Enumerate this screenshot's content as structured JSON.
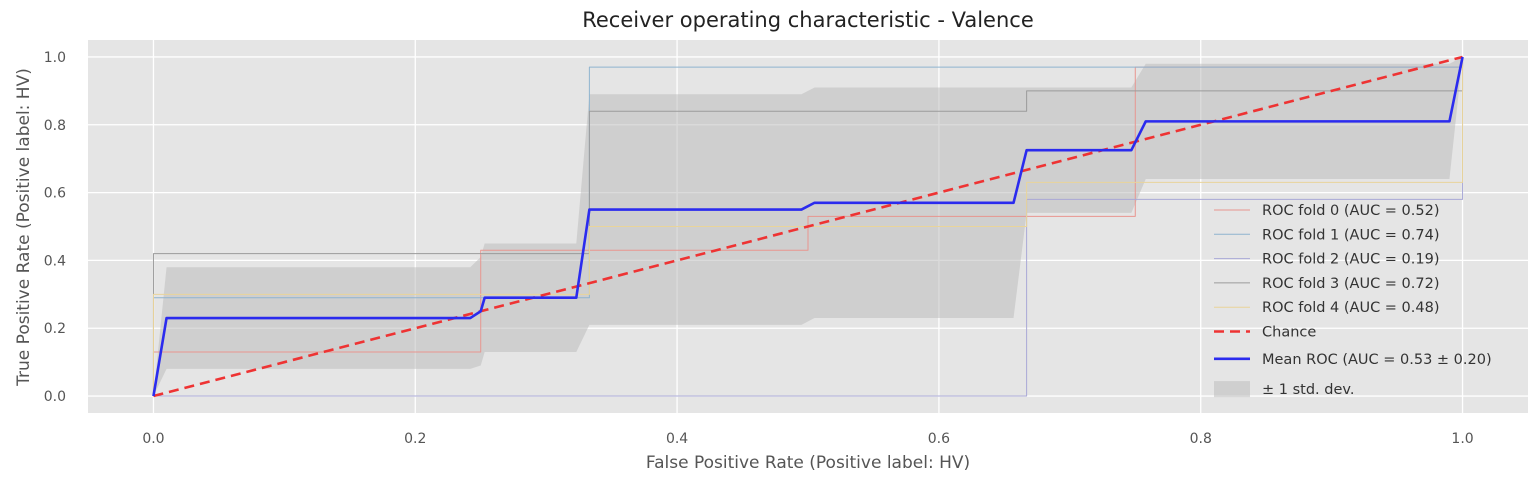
{
  "chart_data": {
    "type": "line",
    "title": "Receiver operating characteristic - Valence",
    "xlabel": "False Positive Rate (Positive label: HV)",
    "ylabel": "True Positive Rate (Positive label: HV)",
    "xlim": [
      -0.05,
      1.05
    ],
    "ylim": [
      -0.05,
      1.05
    ],
    "xticks": [
      0.0,
      0.2,
      0.4,
      0.6,
      0.8,
      1.0
    ],
    "yticks": [
      0.0,
      0.2,
      0.4,
      0.6,
      0.8,
      1.0
    ],
    "xtick_labels": [
      "0.0",
      "0.2",
      "0.4",
      "0.6",
      "0.8",
      "1.0"
    ],
    "ytick_labels": [
      "0.0",
      "0.2",
      "0.4",
      "0.6",
      "0.8",
      "1.0"
    ],
    "grid": true,
    "legend_position": "lower-right",
    "background_color": "#e5e5e5",
    "series": [
      {
        "name": "ROC fold 0 (AUC = 0.52)",
        "color": "#e8958f",
        "linewidth": 1,
        "dash": "solid",
        "x": [
          0,
          0,
          0.25,
          0.25,
          0.5,
          0.5,
          0.75,
          0.75,
          1.0,
          1.0
        ],
        "y": [
          0,
          0.13,
          0.13,
          0.43,
          0.43,
          0.53,
          0.53,
          0.97,
          0.97,
          1.0
        ]
      },
      {
        "name": "ROC fold 1 (AUC = 0.74)",
        "color": "#8fb4cf",
        "linewidth": 1,
        "dash": "solid",
        "x": [
          0,
          0,
          0.333,
          0.333,
          1.0,
          1.0
        ],
        "y": [
          0,
          0.29,
          0.29,
          0.97,
          0.97,
          1.0
        ]
      },
      {
        "name": "ROC fold 2 (AUC = 0.19)",
        "color": "#a9a8d6",
        "linewidth": 1,
        "dash": "solid",
        "x": [
          0,
          0.667,
          0.667,
          1.0,
          1.0
        ],
        "y": [
          0,
          0,
          0.58,
          0.58,
          1.0
        ]
      },
      {
        "name": "ROC fold 3 (AUC = 0.72)",
        "color": "#9b9b9b",
        "linewidth": 1,
        "dash": "solid",
        "x": [
          0,
          0,
          0.333,
          0.333,
          0.667,
          0.667,
          1.0,
          1.0
        ],
        "y": [
          0,
          0.42,
          0.42,
          0.84,
          0.84,
          0.9,
          0.9,
          1.0
        ]
      },
      {
        "name": "ROC fold 4 (AUC = 0.48)",
        "color": "#e9d49a",
        "linewidth": 1,
        "dash": "solid",
        "x": [
          0,
          0,
          0.333,
          0.333,
          0.667,
          0.667,
          1.0,
          1.0
        ],
        "y": [
          0,
          0.3,
          0.3,
          0.5,
          0.5,
          0.63,
          0.63,
          1.0
        ]
      },
      {
        "name": "Chance",
        "color": "#ee3333",
        "linewidth": 2.6,
        "dash": "dashed",
        "x": [
          0,
          1
        ],
        "y": [
          0,
          1
        ]
      },
      {
        "name": "Mean ROC (AUC = 0.53 ± 0.20)",
        "color": "#2b2bee",
        "linewidth": 2.6,
        "dash": "solid",
        "x": [
          0,
          0.01,
          0.242,
          0.25,
          0.253,
          0.26,
          0.323,
          0.333,
          0.495,
          0.505,
          0.657,
          0.667,
          0.747,
          0.758,
          0.99,
          1.0
        ],
        "y": [
          0,
          0.23,
          0.23,
          0.25,
          0.29,
          0.29,
          0.29,
          0.55,
          0.55,
          0.57,
          0.57,
          0.725,
          0.725,
          0.81,
          0.81,
          1.0
        ]
      }
    ],
    "std_band": {
      "name": "± 1 std. dev.",
      "color": "#bdbdbd",
      "opacity": 0.55,
      "x": [
        0,
        0.01,
        0.242,
        0.25,
        0.253,
        0.26,
        0.323,
        0.333,
        0.495,
        0.505,
        0.657,
        0.667,
        0.747,
        0.758,
        0.99,
        1.0
      ],
      "upper": [
        0,
        0.38,
        0.38,
        0.41,
        0.45,
        0.45,
        0.45,
        0.89,
        0.89,
        0.91,
        0.91,
        0.91,
        0.91,
        0.98,
        0.98,
        1.0
      ],
      "lower": [
        0,
        0.08,
        0.08,
        0.09,
        0.13,
        0.13,
        0.13,
        0.21,
        0.21,
        0.23,
        0.23,
        0.54,
        0.54,
        0.64,
        0.64,
        1.0
      ]
    }
  }
}
